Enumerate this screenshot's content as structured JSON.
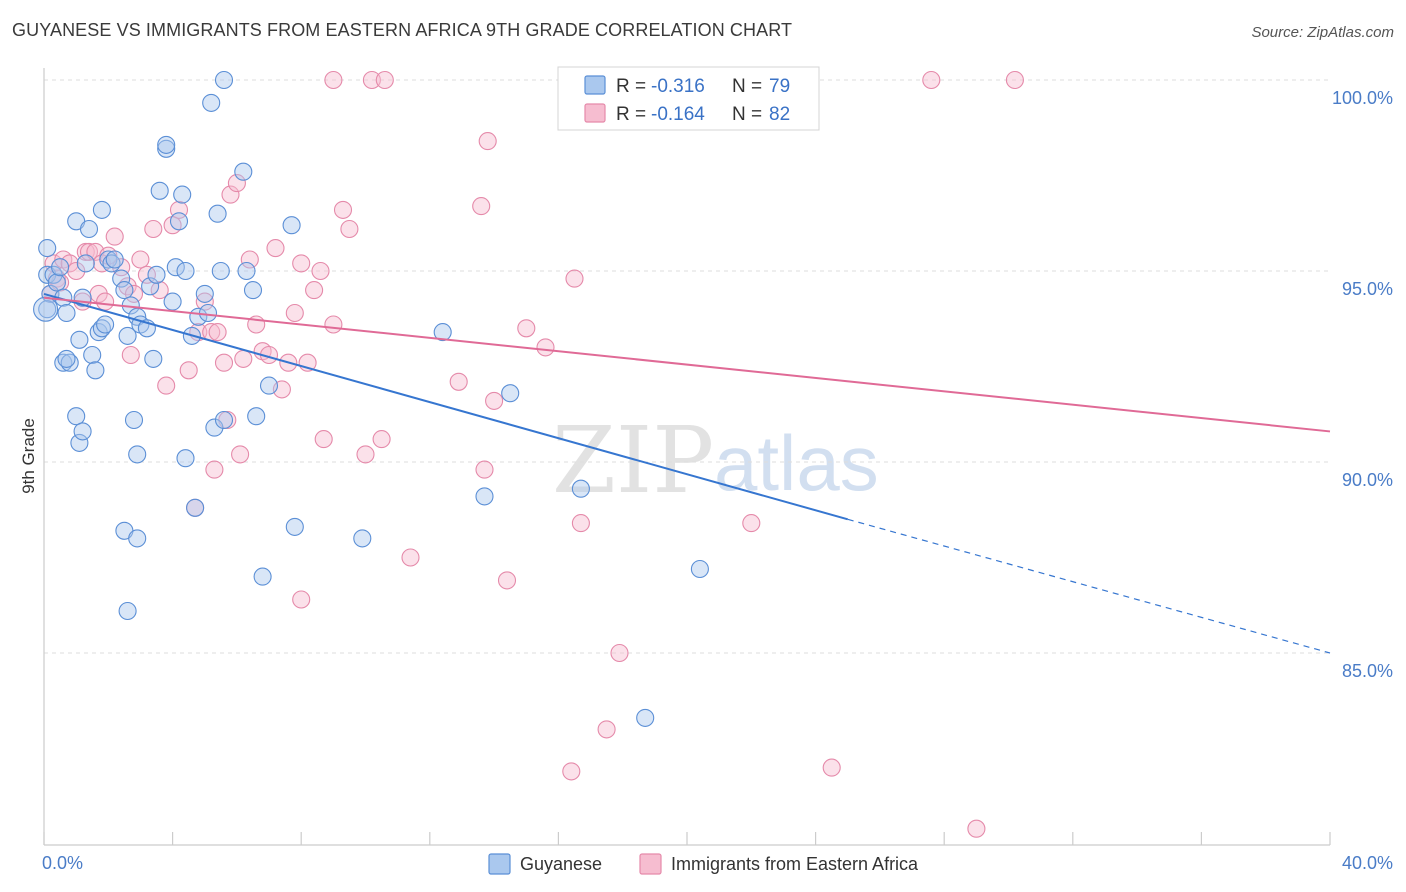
{
  "title": "GUYANESE VS IMMIGRANTS FROM EASTERN AFRICA 9TH GRADE CORRELATION CHART",
  "source": "Source: ZipAtlas.com",
  "watermark": {
    "zip": "ZIP",
    "atlas": "atlas"
  },
  "legend_top": {
    "r_label": "R =",
    "n_label": "N =",
    "rows": [
      {
        "r": "-0.316",
        "n": "79"
      },
      {
        "r": "-0.164",
        "n": "82"
      }
    ]
  },
  "colors": {
    "blue_fill": "#aac8ee",
    "blue_stroke": "#5b8fd6",
    "blue_line": "#3676d0",
    "pink_fill": "#f6bdd0",
    "pink_stroke": "#e58aaa",
    "pink_line": "#e06a96",
    "value_text": "#3a72c6"
  },
  "chart_data": {
    "type": "scatter",
    "title": "GUYANESE VS IMMIGRANTS FROM EASTERN AFRICA 9TH GRADE CORRELATION CHART",
    "xlabel": "",
    "ylabel": "9th Grade",
    "xlim": [
      0,
      40
    ],
    "ylim": [
      80.3,
      100.5
    ],
    "x_tick_labels": [
      "0.0%",
      "40.0%"
    ],
    "y_ticks": [
      85,
      90,
      95,
      100
    ],
    "y_tick_labels": [
      "85.0%",
      "90.0%",
      "95.0%",
      "100.0%"
    ],
    "grid": true,
    "legend_placement": "bottom",
    "series": [
      {
        "name": "Guyanese",
        "r": -0.316,
        "n": 79,
        "trend": {
          "x0": 0,
          "y0": 94.4,
          "x1": 25,
          "y1": 88.5,
          "dash_to_x": 40,
          "dash_to_y": 85.0
        },
        "points": [
          [
            0.1,
            95.6
          ],
          [
            0.1,
            94.9
          ],
          [
            0.2,
            94.4
          ],
          [
            0.1,
            94.0
          ],
          [
            0.3,
            94.9
          ],
          [
            0.4,
            94.7
          ],
          [
            0.5,
            95.1
          ],
          [
            0.6,
            94.3
          ],
          [
            0.7,
            93.9
          ],
          [
            0.6,
            92.6
          ],
          [
            0.8,
            92.6
          ],
          [
            0.7,
            92.7
          ],
          [
            1.0,
            96.3
          ],
          [
            1.1,
            93.2
          ],
          [
            1.2,
            94.3
          ],
          [
            1.3,
            95.2
          ],
          [
            1.4,
            96.1
          ],
          [
            1.5,
            92.8
          ],
          [
            1.6,
            92.4
          ],
          [
            1.7,
            93.4
          ],
          [
            1.8,
            93.5
          ],
          [
            1.8,
            96.6
          ],
          [
            1.9,
            93.6
          ],
          [
            2.0,
            95.3
          ],
          [
            2.1,
            95.2
          ],
          [
            2.2,
            95.3
          ],
          [
            2.4,
            94.8
          ],
          [
            2.5,
            94.5
          ],
          [
            2.6,
            93.3
          ],
          [
            2.7,
            94.1
          ],
          [
            2.9,
            93.8
          ],
          [
            3.0,
            93.6
          ],
          [
            3.2,
            93.5
          ],
          [
            3.3,
            94.6
          ],
          [
            3.4,
            92.7
          ],
          [
            3.6,
            97.1
          ],
          [
            3.5,
            94.9
          ],
          [
            3.8,
            98.2
          ],
          [
            3.8,
            98.3
          ],
          [
            4.0,
            94.2
          ],
          [
            4.1,
            95.1
          ],
          [
            4.2,
            96.3
          ],
          [
            4.3,
            97.0
          ],
          [
            4.4,
            95.0
          ],
          [
            4.6,
            93.3
          ],
          [
            4.8,
            93.8
          ],
          [
            5.0,
            94.4
          ],
          [
            5.1,
            93.9
          ],
          [
            5.2,
            99.4
          ],
          [
            5.4,
            96.5
          ],
          [
            5.5,
            95.0
          ],
          [
            5.6,
            100.0
          ],
          [
            6.2,
            97.6
          ],
          [
            6.3,
            95.0
          ],
          [
            6.5,
            94.5
          ],
          [
            6.6,
            91.2
          ],
          [
            7.0,
            92.0
          ],
          [
            7.7,
            96.2
          ],
          [
            1.0,
            91.2
          ],
          [
            1.1,
            90.5
          ],
          [
            1.2,
            90.8
          ],
          [
            2.8,
            91.1
          ],
          [
            2.9,
            90.2
          ],
          [
            4.4,
            90.1
          ],
          [
            5.3,
            90.9
          ],
          [
            5.6,
            91.1
          ],
          [
            4.7,
            88.8
          ],
          [
            2.5,
            88.2
          ],
          [
            2.9,
            88.0
          ],
          [
            7.8,
            88.3
          ],
          [
            9.9,
            88.0
          ],
          [
            6.8,
            87.0
          ],
          [
            2.6,
            86.1
          ],
          [
            12.4,
            93.4
          ],
          [
            13.7,
            89.1
          ],
          [
            14.5,
            91.8
          ],
          [
            16.7,
            89.3
          ],
          [
            20.4,
            87.2
          ],
          [
            18.7,
            83.3
          ]
        ]
      },
      {
        "name": "Immigrants from Eastern Africa",
        "r": -0.164,
        "n": 82,
        "trend": {
          "x0": 0,
          "y0": 94.3,
          "x1": 40,
          "y1": 90.8
        },
        "points": [
          [
            0.2,
            94.4
          ],
          [
            0.3,
            95.2
          ],
          [
            0.4,
            94.8
          ],
          [
            0.5,
            94.7
          ],
          [
            0.6,
            95.3
          ],
          [
            0.8,
            95.2
          ],
          [
            1.0,
            95.0
          ],
          [
            1.2,
            94.2
          ],
          [
            1.3,
            95.5
          ],
          [
            1.4,
            95.5
          ],
          [
            1.6,
            95.5
          ],
          [
            1.7,
            94.4
          ],
          [
            1.8,
            95.2
          ],
          [
            1.9,
            94.2
          ],
          [
            2.0,
            95.4
          ],
          [
            2.2,
            95.9
          ],
          [
            2.4,
            95.1
          ],
          [
            2.6,
            94.6
          ],
          [
            2.8,
            94.4
          ],
          [
            3.0,
            95.3
          ],
          [
            3.2,
            94.9
          ],
          [
            3.4,
            96.1
          ],
          [
            3.6,
            94.5
          ],
          [
            3.8,
            92.0
          ],
          [
            4.0,
            96.2
          ],
          [
            4.2,
            96.6
          ],
          [
            4.5,
            92.4
          ],
          [
            4.8,
            93.4
          ],
          [
            5.0,
            94.2
          ],
          [
            5.2,
            93.4
          ],
          [
            5.4,
            93.4
          ],
          [
            5.6,
            92.6
          ],
          [
            5.8,
            97.0
          ],
          [
            6.0,
            97.3
          ],
          [
            6.2,
            92.7
          ],
          [
            6.4,
            95.3
          ],
          [
            6.6,
            93.6
          ],
          [
            6.8,
            92.9
          ],
          [
            7.0,
            92.8
          ],
          [
            7.2,
            95.6
          ],
          [
            7.4,
            91.9
          ],
          [
            7.6,
            92.6
          ],
          [
            7.8,
            93.9
          ],
          [
            8.0,
            95.2
          ],
          [
            8.2,
            92.6
          ],
          [
            8.4,
            94.5
          ],
          [
            8.6,
            95.0
          ],
          [
            9.0,
            93.6
          ],
          [
            9.3,
            96.6
          ],
          [
            9.5,
            96.1
          ],
          [
            2.7,
            92.8
          ],
          [
            4.7,
            88.8
          ],
          [
            5.3,
            89.8
          ],
          [
            6.1,
            90.2
          ],
          [
            5.7,
            91.1
          ],
          [
            8.7,
            90.6
          ],
          [
            10.0,
            90.2
          ],
          [
            10.5,
            90.6
          ],
          [
            11.4,
            87.5
          ],
          [
            8.0,
            86.4
          ],
          [
            12.9,
            92.1
          ],
          [
            13.7,
            89.8
          ],
          [
            13.6,
            96.7
          ],
          [
            13.8,
            98.4
          ],
          [
            14.4,
            86.9
          ],
          [
            14.0,
            91.6
          ],
          [
            15.0,
            93.5
          ],
          [
            15.6,
            93.0
          ],
          [
            16.5,
            94.8
          ],
          [
            16.7,
            88.4
          ],
          [
            17.9,
            85.0
          ],
          [
            17.5,
            83.0
          ],
          [
            16.4,
            81.9
          ],
          [
            24.5,
            82.0
          ],
          [
            22.0,
            88.4
          ],
          [
            29.0,
            80.4
          ],
          [
            9.0,
            100.0
          ],
          [
            10.2,
            100.0
          ],
          [
            10.6,
            100.0
          ],
          [
            22.6,
            100.0
          ],
          [
            27.6,
            100.0
          ],
          [
            30.2,
            100.0
          ]
        ]
      }
    ]
  }
}
